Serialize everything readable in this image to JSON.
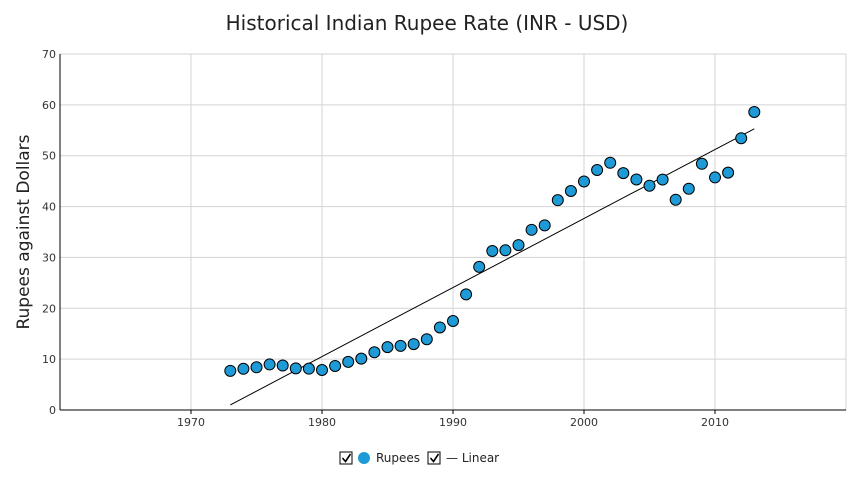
{
  "chart_data": {
    "type": "scatter",
    "title": "Historical Indian Rupee Rate (INR - USD)",
    "xlabel": "",
    "ylabel": "Rupees against Dollars",
    "xlim": [
      1960,
      2020
    ],
    "ylim": [
      0,
      70
    ],
    "xticks": [
      1970,
      1980,
      1990,
      2000,
      2010
    ],
    "yticks": [
      0,
      10,
      20,
      30,
      40,
      50,
      60,
      70
    ],
    "grid": true,
    "legend_position": "bottom-center",
    "colors": {
      "rupees": "#1e9ad6",
      "linear": "#000000"
    },
    "series": [
      {
        "name": "Rupees",
        "type": "scatter",
        "x": [
          1973,
          1974,
          1975,
          1976,
          1977,
          1978,
          1979,
          1980,
          1981,
          1982,
          1983,
          1984,
          1985,
          1986,
          1987,
          1988,
          1989,
          1990,
          1991,
          1992,
          1993,
          1994,
          1995,
          1996,
          1997,
          1998,
          1999,
          2000,
          2001,
          2002,
          2003,
          2004,
          2005,
          2006,
          2007,
          2008,
          2009,
          2010,
          2011,
          2012,
          2013
        ],
        "y": [
          7.7,
          8.1,
          8.4,
          8.96,
          8.74,
          8.19,
          8.13,
          7.86,
          8.66,
          9.46,
          10.1,
          11.36,
          12.37,
          12.61,
          12.96,
          13.92,
          16.23,
          17.5,
          22.74,
          28.14,
          31.26,
          31.4,
          32.43,
          35.43,
          36.31,
          41.26,
          43.06,
          44.94,
          47.19,
          48.61,
          46.58,
          45.32,
          44.1,
          45.31,
          41.35,
          43.51,
          48.41,
          45.73,
          46.67,
          53.44,
          58.6
        ]
      },
      {
        "name": "Linear",
        "type": "line",
        "x": [
          1973,
          2013
        ],
        "y": [
          1.0,
          55.3
        ]
      }
    ]
  },
  "legend": {
    "rupees_label": "Rupees",
    "linear_label": "— Linear",
    "rupees_checked": true,
    "linear_checked": true
  }
}
